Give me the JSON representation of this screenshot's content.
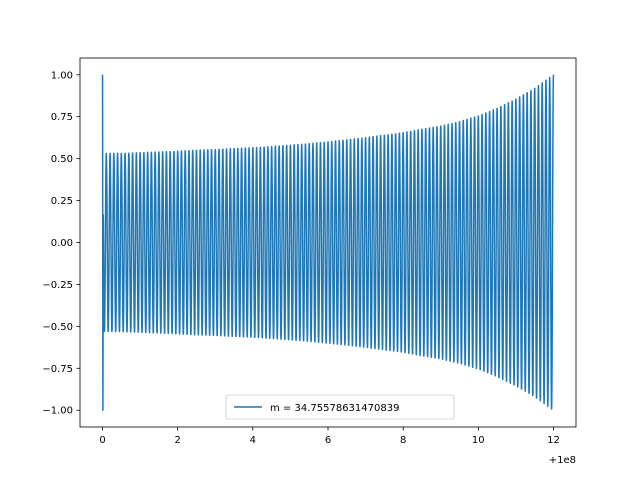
{
  "chart_data": {
    "type": "line",
    "title": "",
    "xlabel": "",
    "ylabel": "",
    "x_offset_label": "+1e8",
    "xlim": [
      -0.6,
      12.6
    ],
    "ylim": [
      -1.1,
      1.1
    ],
    "x_ticks": [
      0,
      2,
      4,
      6,
      8,
      10,
      12
    ],
    "x_tick_labels": [
      "0",
      "2",
      "4",
      "6",
      "8",
      "10",
      "12"
    ],
    "y_ticks": [
      -1.0,
      -0.75,
      -0.5,
      -0.25,
      0.0,
      0.25,
      0.5,
      0.75,
      1.0
    ],
    "y_tick_labels": [
      "−1.00",
      "−0.75",
      "−0.50",
      "−0.25",
      "0.00",
      "0.25",
      "0.50",
      "0.75",
      "1.00"
    ],
    "grid": false,
    "legend_position": "lower-center",
    "series": [
      {
        "name": "m = 34.75578631470839",
        "color": "#1f77b4",
        "x_range": [
          0,
          12
        ],
        "cycles": 120,
        "initial_value": 1.0,
        "initial_min": -1.0,
        "envelope": {
          "x": [
            0.05,
            1,
            2,
            3,
            4,
            5,
            6,
            7,
            8,
            9,
            9.5,
            10,
            10.5,
            11,
            11.5,
            12
          ],
          "amplitude": [
            0.53,
            0.535,
            0.545,
            0.555,
            0.565,
            0.58,
            0.6,
            0.625,
            0.655,
            0.695,
            0.72,
            0.755,
            0.8,
            0.855,
            0.92,
            1.0
          ]
        }
      }
    ]
  }
}
